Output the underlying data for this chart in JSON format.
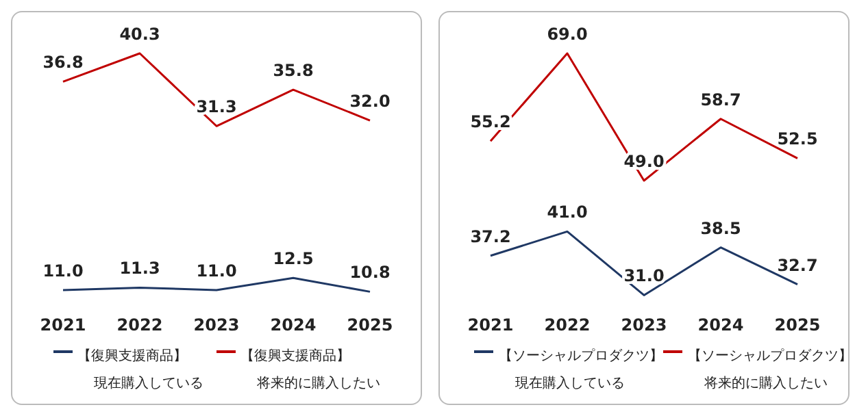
{
  "chart_data": [
    {
      "type": "line",
      "categories": [
        "2021",
        "2022",
        "2023",
        "2024",
        "2025"
      ],
      "series": [
        {
          "name": "【復興支援商品】現在購入している",
          "color": "#1f3864",
          "values": [
            11.0,
            11.3,
            11.0,
            12.5,
            10.8
          ],
          "value_labels": [
            "11.0",
            "11.3",
            "11.0",
            "12.5",
            "10.8"
          ]
        },
        {
          "name": "【復興支援商品】将来的に購入したい",
          "color": "#c00000",
          "values": [
            36.8,
            40.3,
            31.3,
            35.8,
            32.0
          ],
          "value_labels": [
            "36.8",
            "40.3",
            "31.3",
            "35.8",
            "32.0"
          ]
        }
      ],
      "legend": "bottom",
      "grid": false,
      "marker": "none",
      "line_style": "solid"
    },
    {
      "type": "line",
      "categories": [
        "2021",
        "2022",
        "2023",
        "2024",
        "2025"
      ],
      "series": [
        {
          "name": "【ソーシャルプロダクツ】現在購入している",
          "color": "#1f3864",
          "values": [
            37.2,
            41.0,
            31.0,
            38.5,
            32.7
          ],
          "value_labels": [
            "37.2",
            "41.0",
            "31.0",
            "38.5",
            "32.7"
          ]
        },
        {
          "name": "【ソーシャルプロダクツ】将来的に購入したい",
          "color": "#c00000",
          "values": [
            55.2,
            69.0,
            49.0,
            58.7,
            52.5
          ],
          "value_labels": [
            "55.2",
            "69.0",
            "49.0",
            "58.7",
            "52.5"
          ]
        }
      ],
      "legend": "bottom",
      "grid": false,
      "marker": "none",
      "line_style": "solid"
    }
  ]
}
